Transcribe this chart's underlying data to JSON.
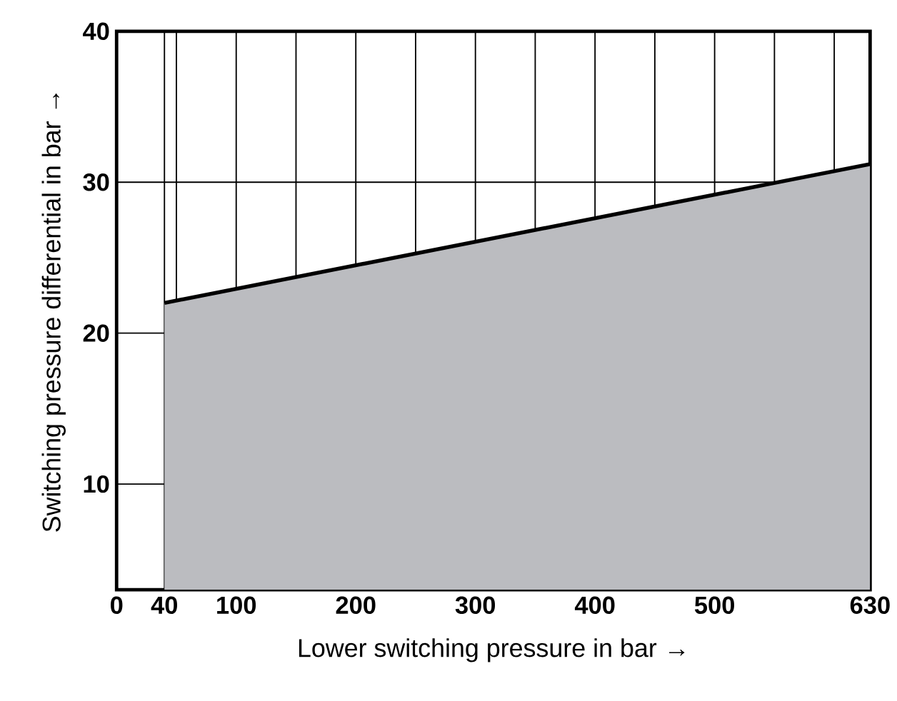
{
  "chart_data": {
    "type": "area",
    "xlabel": "Lower switching pressure in bar →",
    "ylabel": "Switching pressure differential in bar →",
    "x": [
      40,
      630
    ],
    "values": [
      22,
      31.2
    ],
    "color": "#bbbcc0",
    "xlim": [
      0,
      630
    ],
    "ylim": [
      3,
      40
    ],
    "xticks": [
      0,
      40,
      {
        "value": 50,
        "label": null
      },
      100,
      {
        "value": 150,
        "label": null
      },
      200,
      {
        "value": 250,
        "label": null
      },
      300,
      {
        "value": 350,
        "label": null
      },
      400,
      {
        "value": 450,
        "label": null
      },
      500,
      {
        "value": 550,
        "label": null
      },
      {
        "value": 600,
        "label": null
      },
      630
    ],
    "yticks": [
      10,
      20,
      30,
      40
    ],
    "grid": true
  }
}
